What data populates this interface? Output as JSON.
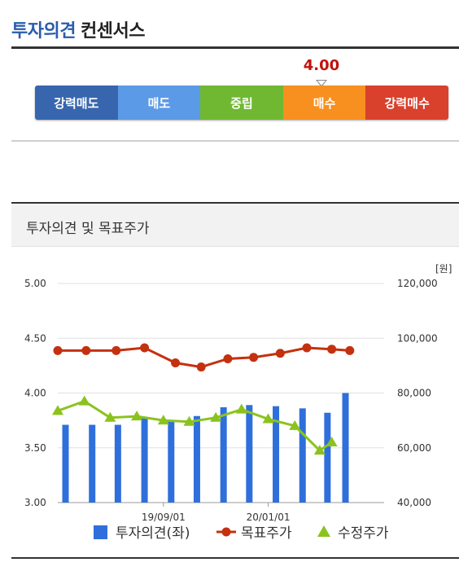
{
  "header": {
    "title_accent": "투자의견",
    "title_rest": "컨센서스"
  },
  "consensus": {
    "score": "4.00",
    "score_value": 4.0,
    "scale": [
      {
        "label": "강력매도",
        "color": "#3766ae"
      },
      {
        "label": "매도",
        "color": "#5b9ae6"
      },
      {
        "label": "중립",
        "color": "#70b832"
      },
      {
        "label": "매수",
        "color": "#f7901e"
      },
      {
        "label": "강력매수",
        "color": "#d9412d"
      }
    ]
  },
  "panel": {
    "title": "투자의견 및 목표주가"
  },
  "chart_data": {
    "type": "bar+line",
    "title": "",
    "unit_right": "[원]",
    "left_axis": {
      "min": 3.0,
      "max": 5.0,
      "ticks": [
        "5.00",
        "4.50",
        "4.00",
        "3.50",
        "3.00"
      ],
      "tick_values": [
        5.0,
        4.5,
        4.0,
        3.5,
        3.0
      ]
    },
    "right_axis": {
      "min": 40000,
      "max": 120000,
      "ticks": [
        "120,000",
        "100,000",
        "80,000",
        "60,000",
        "40,000"
      ],
      "tick_values": [
        120000,
        100000,
        80000,
        60000,
        40000
      ]
    },
    "x_range": [
      "2019-05-01",
      "2020-05-15"
    ],
    "x_tick_labels": [
      {
        "date": "2019-09-01",
        "label": "19/09/01"
      },
      {
        "date": "2020-01-01",
        "label": "20/01/01"
      }
    ],
    "grid": true,
    "legend_position": "bottom",
    "series": [
      {
        "name": "투자의견(좌)",
        "type": "bar",
        "axis": "left",
        "color": "#2f6fdb",
        "points": [
          {
            "date": "2019-05-10",
            "value": 3.71
          },
          {
            "date": "2019-06-10",
            "value": 3.71
          },
          {
            "date": "2019-07-10",
            "value": 3.71
          },
          {
            "date": "2019-08-10",
            "value": 3.78
          },
          {
            "date": "2019-09-10",
            "value": 3.75
          },
          {
            "date": "2019-10-10",
            "value": 3.79
          },
          {
            "date": "2019-11-10",
            "value": 3.87
          },
          {
            "date": "2019-12-10",
            "value": 3.89
          },
          {
            "date": "2020-01-10",
            "value": 3.88
          },
          {
            "date": "2020-02-10",
            "value": 3.86
          },
          {
            "date": "2020-03-10",
            "value": 3.82
          },
          {
            "date": "2020-03-31",
            "value": 4.0
          }
        ]
      },
      {
        "name": "목표주가",
        "type": "line",
        "axis": "right",
        "color": "#c4310f",
        "marker": "circle",
        "points": [
          {
            "date": "2019-05-01",
            "value": 95500
          },
          {
            "date": "2019-06-03",
            "value": 95500
          },
          {
            "date": "2019-07-08",
            "value": 95500
          },
          {
            "date": "2019-08-10",
            "value": 96500
          },
          {
            "date": "2019-09-15",
            "value": 91000
          },
          {
            "date": "2019-10-15",
            "value": 89500
          },
          {
            "date": "2019-11-15",
            "value": 92500
          },
          {
            "date": "2019-12-15",
            "value": 93000
          },
          {
            "date": "2020-01-15",
            "value": 94500
          },
          {
            "date": "2020-02-15",
            "value": 96500
          },
          {
            "date": "2020-03-15",
            "value": 96000
          },
          {
            "date": "2020-04-05",
            "value": 95500
          }
        ]
      },
      {
        "name": "수정주가",
        "type": "line",
        "axis": "right",
        "color": "#8bc31e",
        "marker": "triangle",
        "points": [
          {
            "date": "2019-05-01",
            "value": 73500
          },
          {
            "date": "2019-06-01",
            "value": 77000
          },
          {
            "date": "2019-07-01",
            "value": 71000
          },
          {
            "date": "2019-08-01",
            "value": 71500
          },
          {
            "date": "2019-09-01",
            "value": 70000
          },
          {
            "date": "2019-10-01",
            "value": 69500
          },
          {
            "date": "2019-11-01",
            "value": 71000
          },
          {
            "date": "2019-12-01",
            "value": 74000
          },
          {
            "date": "2020-01-01",
            "value": 70500
          },
          {
            "date": "2020-02-01",
            "value": 68000
          },
          {
            "date": "2020-03-01",
            "value": 59000
          },
          {
            "date": "2020-03-15",
            "value": 62000
          }
        ]
      }
    ]
  }
}
